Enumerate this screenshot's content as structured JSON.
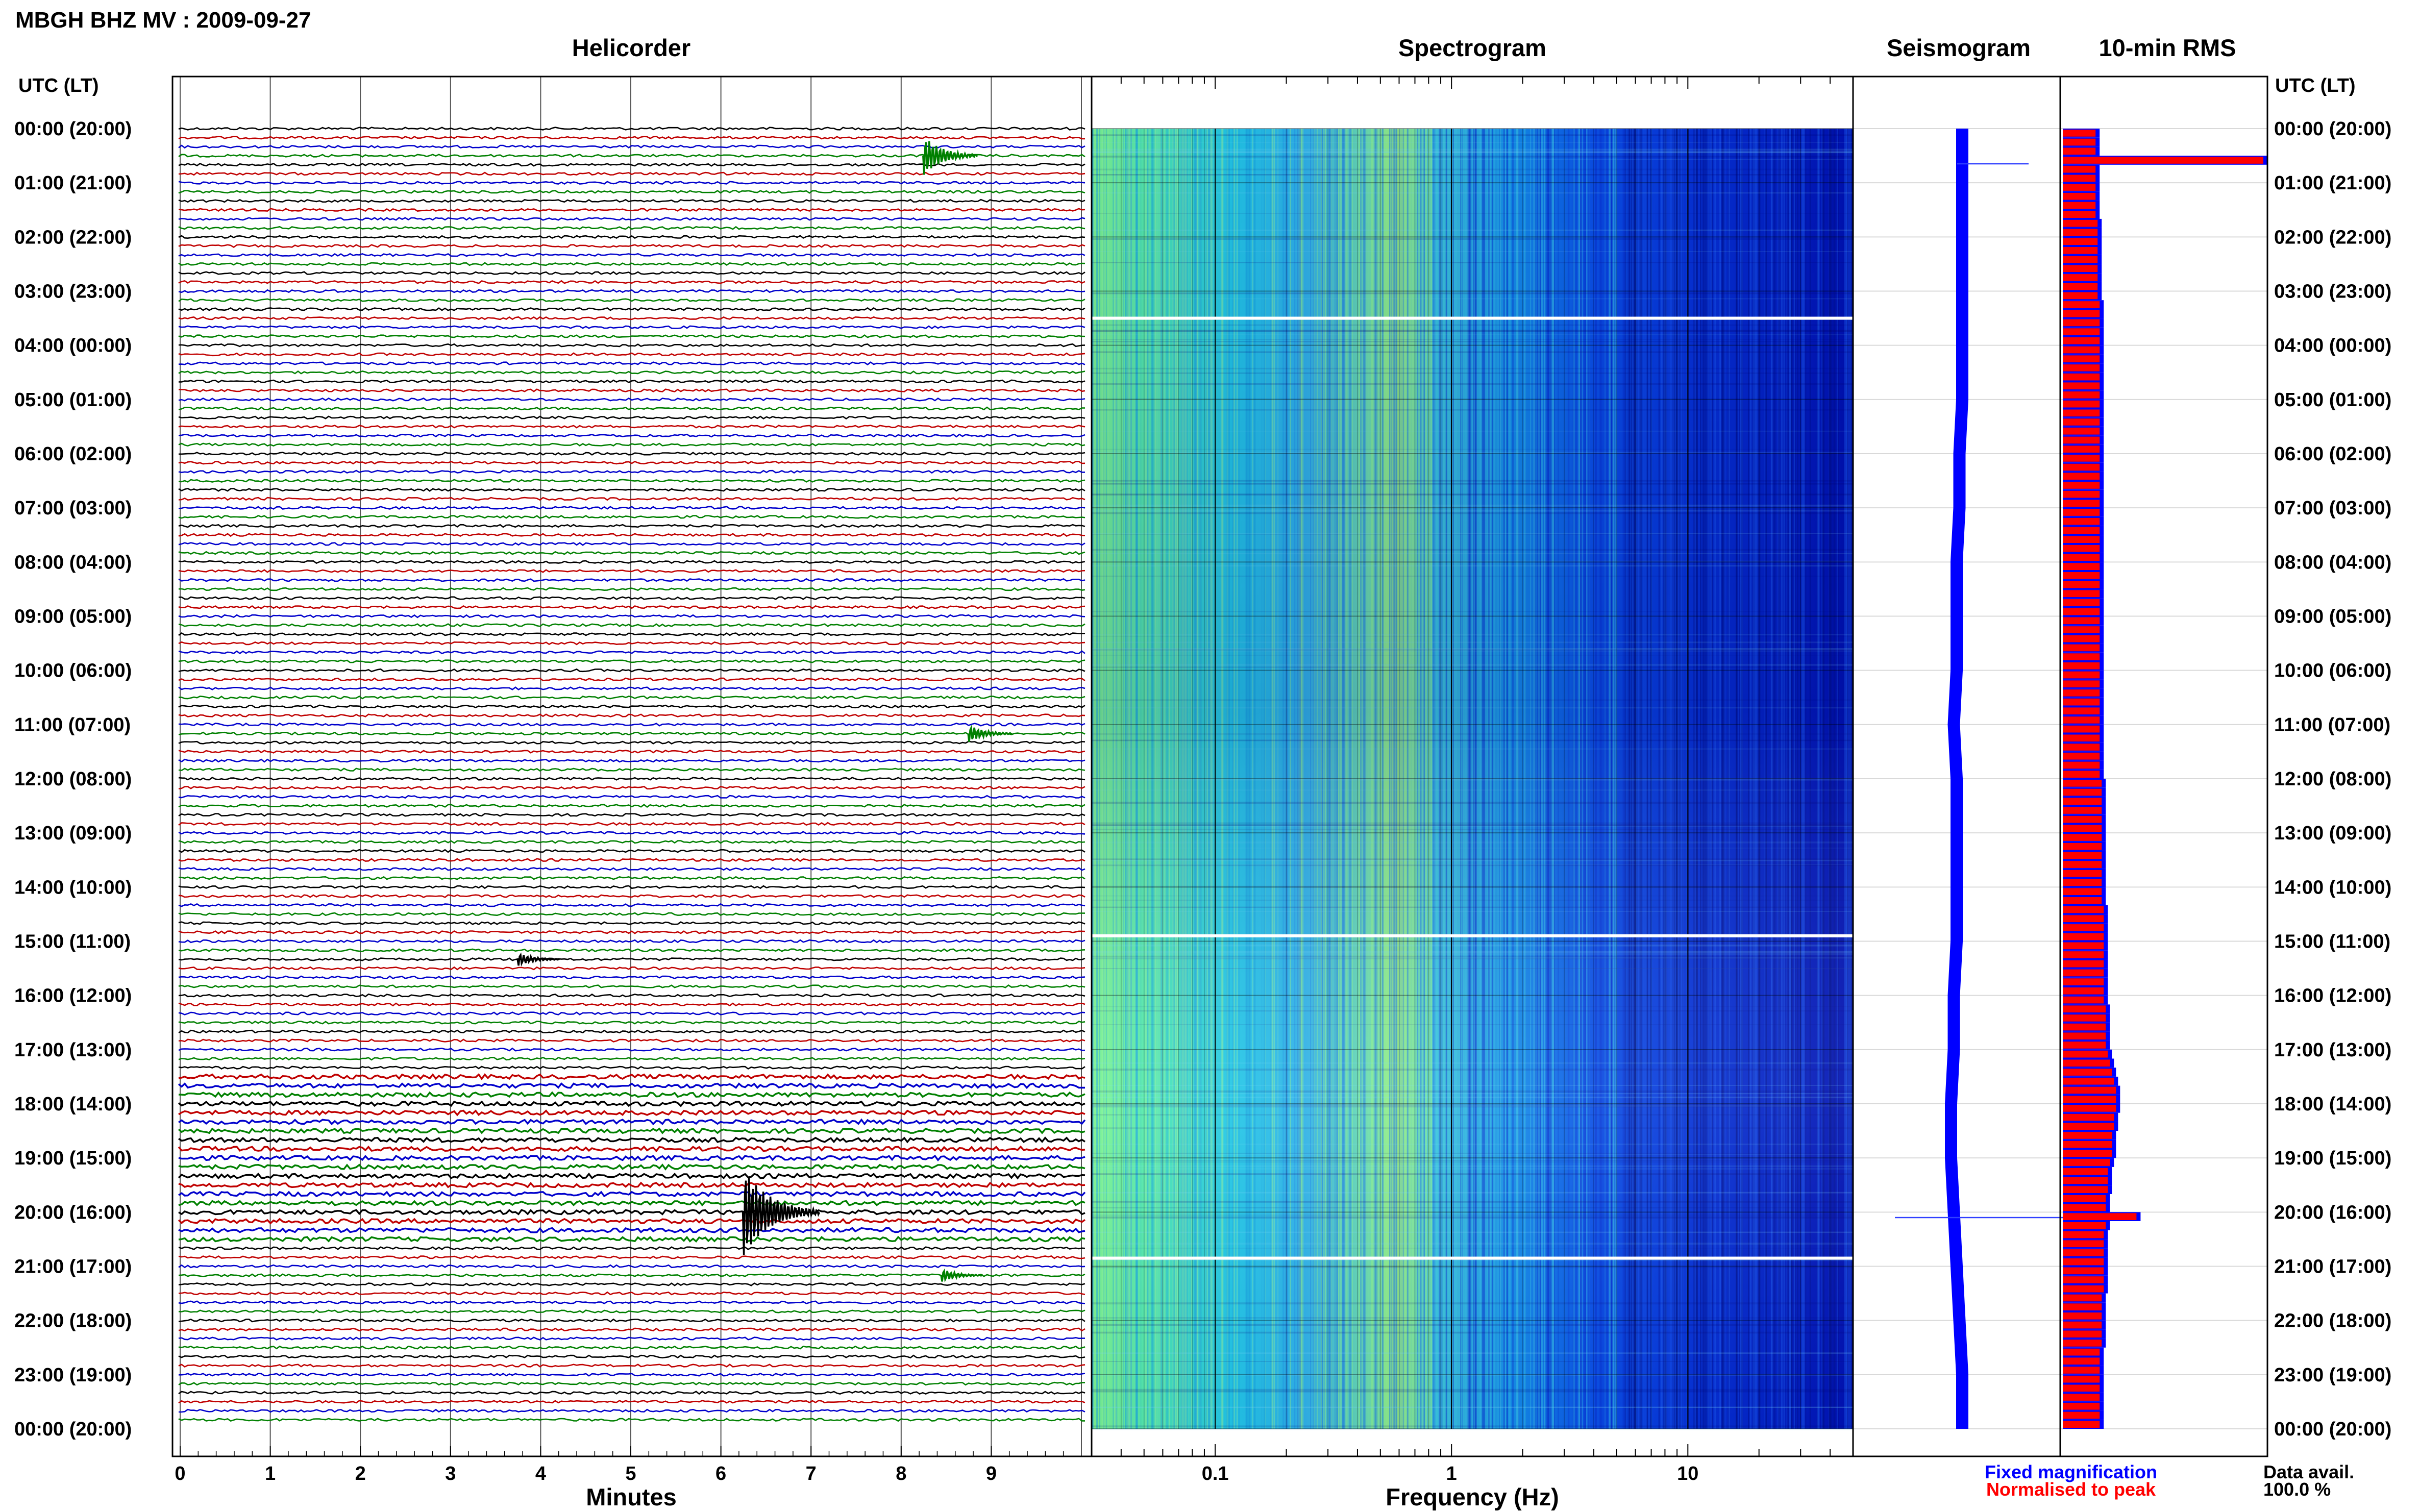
{
  "header": {
    "title": "MBGH BHZ MV : 2009-09-27",
    "utc_label_left": "UTC (LT)",
    "utc_label_right": "UTC (LT)"
  },
  "panels": {
    "helicorder": "Helicorder",
    "spectrogram": "Spectrogram",
    "seismogram": "Seismogram",
    "rms": "10-min RMS"
  },
  "time_labels": [
    "00:00 (20:00)",
    "01:00 (21:00)",
    "02:00 (22:00)",
    "03:00 (23:00)",
    "04:00 (00:00)",
    "05:00 (01:00)",
    "06:00 (02:00)",
    "07:00 (03:00)",
    "08:00 (04:00)",
    "09:00 (05:00)",
    "10:00 (06:00)",
    "11:00 (07:00)",
    "12:00 (08:00)",
    "13:00 (09:00)",
    "14:00 (10:00)",
    "15:00 (11:00)",
    "16:00 (12:00)",
    "17:00 (13:00)",
    "18:00 (14:00)",
    "19:00 (15:00)",
    "20:00 (16:00)",
    "21:00 (17:00)",
    "22:00 (18:00)",
    "23:00 (19:00)",
    "00:00 (20:00)"
  ],
  "axes": {
    "minutes_label": "Minutes",
    "minutes_ticks": [
      "0",
      "1",
      "2",
      "3",
      "4",
      "5",
      "6",
      "7",
      "8",
      "9"
    ],
    "frequency_label": "Frequency (Hz)",
    "frequency_ticks": [
      "0.1",
      "1",
      "10"
    ]
  },
  "legend": {
    "fixed": "Fixed magnification",
    "normalised": "Normalised to peak",
    "data_avail_label": "Data avail.",
    "data_avail_value": "100.0 %"
  },
  "colors": {
    "black": "#000000",
    "red": "#c00000",
    "blue": "#0000cc",
    "green": "#008000",
    "rms_red": "#ff0000",
    "rms_blue": "#0000ff",
    "fixed_legend": "#0000ff",
    "norm_legend": "#ff0000"
  },
  "chart_data": {
    "type": "heatmap",
    "helicorder": {
      "x_unit": "minutes",
      "xlim": [
        0,
        10
      ],
      "rows": 144,
      "row_minutes": 10,
      "trace_color_cycle": [
        "black",
        "red",
        "blue",
        "green"
      ],
      "events": [
        {
          "hour": 0.47,
          "minute": 8.3,
          "amplitude": 0.9
        },
        {
          "hour": 20.0,
          "minute": 6.3,
          "amplitude": 2.0
        },
        {
          "hour": 11.1,
          "minute": 8.8,
          "amplitude": 0.4
        },
        {
          "hour": 15.3,
          "minute": 3.8,
          "amplitude": 0.3
        },
        {
          "hour": 21.2,
          "minute": 8.5,
          "amplitude": 0.3
        }
      ]
    },
    "spectrogram": {
      "x_unit": "Hz",
      "x_scale": "log",
      "xlim": [
        0.03,
        50
      ],
      "data_gaps_hours": [
        3.5,
        14.9,
        20.85
      ]
    },
    "seismogram": {
      "offsets_by_hour": [
        0.0,
        0.0,
        0.0,
        0.0,
        0.0,
        0.0,
        -0.1,
        -0.1,
        -0.2,
        -0.2,
        -0.2,
        -0.3,
        -0.2,
        -0.2,
        -0.2,
        -0.2,
        -0.3,
        -0.3,
        -0.4,
        -0.4,
        -0.3,
        -0.2,
        -0.1,
        0.0,
        0.0
      ],
      "spikes": [
        {
          "hour": 0.65,
          "extent": 1.3
        },
        {
          "hour": 20.1,
          "extent": 2.4
        }
      ]
    },
    "rms": {
      "bars_per_hour": 6,
      "values": [
        1.8,
        1.8,
        1.8,
        1.8,
        1.8,
        1.8,
        1.8,
        1.8,
        1.8,
        1.8,
        1.9,
        1.9,
        1.9,
        1.9,
        1.9,
        1.9,
        1.9,
        1.9,
        1.9,
        2.0,
        2.0,
        2.0,
        2.0,
        2.0,
        2.0,
        2.0,
        2.0,
        2.0,
        2.0,
        2.0,
        2.0,
        2.0,
        2.0,
        2.0,
        2.0,
        2.0,
        2.0,
        2.0,
        2.0,
        2.0,
        2.0,
        2.0,
        2.0,
        2.0,
        2.0,
        2.0,
        2.0,
        2.0,
        2.0,
        2.0,
        2.0,
        2.0,
        2.0,
        2.0,
        2.0,
        2.0,
        2.0,
        2.0,
        2.0,
        2.0,
        2.0,
        2.0,
        2.0,
        2.0,
        2.0,
        2.0,
        2.0,
        2.0,
        2.0,
        2.0,
        2.0,
        2.0,
        2.1,
        2.1,
        2.1,
        2.1,
        2.1,
        2.1,
        2.1,
        2.1,
        2.1,
        2.1,
        2.1,
        2.1,
        2.1,
        2.1,
        2.2,
        2.2,
        2.2,
        2.2,
        2.2,
        2.2,
        2.2,
        2.2,
        2.2,
        2.2,
        2.2,
        2.3,
        2.3,
        2.3,
        2.3,
        2.3,
        2.4,
        2.5,
        2.6,
        2.7,
        2.8,
        2.8,
        2.8,
        2.7,
        2.7,
        2.6,
        2.6,
        2.6,
        2.5,
        2.4,
        2.4,
        2.4,
        2.3,
        2.3,
        2.3,
        2.3,
        2.2,
        2.2,
        2.2,
        2.2,
        2.2,
        2.2,
        2.2,
        2.1,
        2.1,
        2.1,
        2.1,
        2.1,
        2.1,
        2.0,
        2.0,
        2.0,
        2.0,
        2.0,
        2.0,
        2.0,
        2.0,
        2.0
      ],
      "peaks": [
        {
          "bar": 3,
          "value": 10.0
        },
        {
          "bar": 120,
          "value": 3.8
        }
      ],
      "xlim": [
        0,
        10
      ]
    }
  }
}
